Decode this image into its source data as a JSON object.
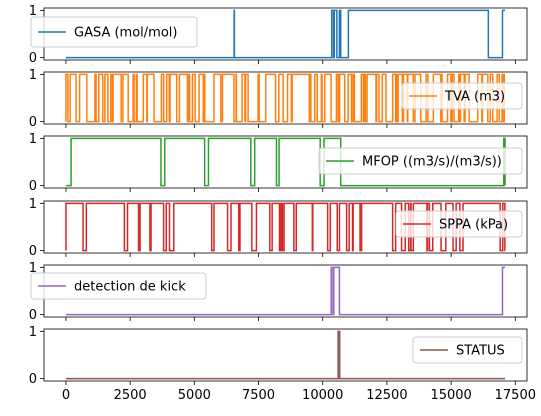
{
  "chart_data": [
    {
      "type": "line",
      "ylim": [
        -0.05,
        1.05
      ],
      "yticks": [
        "0",
        "1"
      ],
      "legend_position": "upper-left",
      "series": [
        {
          "name": "GASA (mol/mol)",
          "color": "#1f77b4",
          "segments": [
            [
              0,
              0
            ],
            [
              6550,
              0
            ],
            [
              6550,
              1
            ],
            [
              6560,
              1
            ],
            [
              6560,
              0
            ],
            [
              10350,
              0
            ],
            [
              10350,
              1
            ],
            [
              10420,
              1
            ],
            [
              10420,
              0
            ],
            [
              10450,
              0
            ],
            [
              10450,
              1
            ],
            [
              10550,
              1
            ],
            [
              10550,
              0
            ],
            [
              10650,
              0
            ],
            [
              10650,
              1
            ],
            [
              10700,
              1
            ],
            [
              10700,
              0
            ],
            [
              11000,
              0
            ],
            [
              11000,
              1
            ],
            [
              16450,
              1
            ],
            [
              16450,
              0
            ],
            [
              17000,
              0
            ],
            [
              17000,
              1
            ],
            [
              17100,
              1
            ]
          ]
        }
      ]
    },
    {
      "type": "line",
      "ylim": [
        -0.05,
        1.05
      ],
      "yticks": [
        "0",
        "1"
      ],
      "legend_position": "center-right",
      "series": [
        {
          "name": "TVA (m3)",
          "color": "#ff7f0e",
          "binary_pattern": {
            "seed": 11,
            "density": 0.55,
            "x_start": 0,
            "x_end": 17100
          }
        }
      ]
    },
    {
      "type": "line",
      "ylim": [
        -0.05,
        1.05
      ],
      "yticks": [
        "0",
        "1"
      ],
      "legend_position": "center-right",
      "series": [
        {
          "name": "MFOP ((m3/s)/(m3/s))",
          "color": "#2ca02c",
          "binary_blocks": [
            [
              200,
              3700
            ],
            [
              3850,
              5400
            ],
            [
              5550,
              7200
            ],
            [
              7350,
              8200
            ],
            [
              8300,
              9900
            ],
            [
              10050,
              10700
            ],
            [
              17050,
              17100
            ]
          ],
          "x_start": 0,
          "x_end": 17100
        }
      ]
    },
    {
      "type": "line",
      "ylim": [
        -0.05,
        1.05
      ],
      "yticks": [
        "0",
        "1"
      ],
      "legend_position": "center-right",
      "series": [
        {
          "name": "SPPA (kPa)",
          "color": "#d62728",
          "binary_pattern": {
            "seed": 29,
            "density": 0.82,
            "x_start": 0,
            "x_end": 17100
          }
        }
      ]
    },
    {
      "type": "line",
      "ylim": [
        -0.05,
        1.05
      ],
      "yticks": [
        "0",
        "1"
      ],
      "legend_position": "upper-left",
      "series": [
        {
          "name": "detection de kick",
          "color": "#9467bd",
          "segments": [
            [
              0,
              0
            ],
            [
              10330,
              0
            ],
            [
              10330,
              1
            ],
            [
              10400,
              1
            ],
            [
              10400,
              0
            ],
            [
              10430,
              0
            ],
            [
              10430,
              1
            ],
            [
              10650,
              1
            ],
            [
              10650,
              0
            ],
            [
              17000,
              0
            ],
            [
              17000,
              1
            ],
            [
              17100,
              1
            ]
          ]
        }
      ]
    },
    {
      "type": "line",
      "ylim": [
        -0.05,
        1.05
      ],
      "yticks": [
        "0",
        "1"
      ],
      "legend_position": "upper-right",
      "series": [
        {
          "name": "STATUS",
          "color": "#8c564b",
          "segments": [
            [
              0,
              0
            ],
            [
              10600,
              0
            ],
            [
              10600,
              1
            ],
            [
              10660,
              1
            ],
            [
              10660,
              0
            ],
            [
              17100,
              0
            ]
          ]
        }
      ]
    }
  ],
  "shared_x": {
    "xlim": [
      -855,
      17955
    ],
    "ticks": [
      0,
      2500,
      5000,
      7500,
      10000,
      12500,
      15000,
      17500
    ],
    "tick_labels": [
      "0",
      "2500",
      "5000",
      "7500",
      "10000",
      "12500",
      "15000",
      "17500"
    ]
  }
}
